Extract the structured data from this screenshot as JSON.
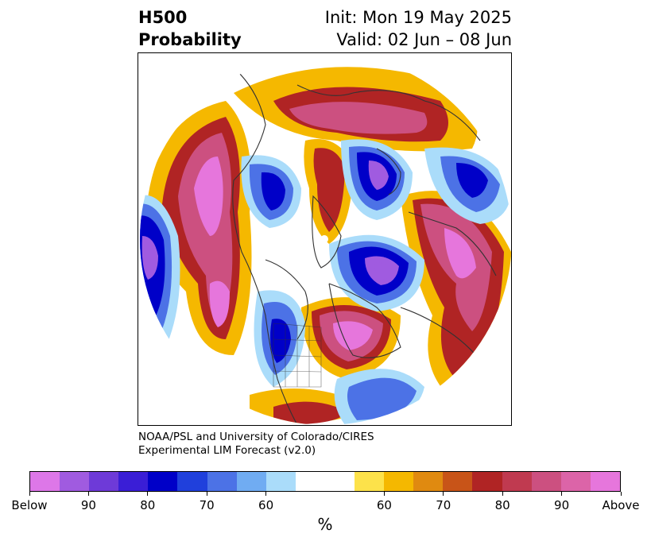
{
  "title": {
    "left_line1": "H500",
    "left_line2": "Probability",
    "right_line1": "Init: Mon 19 May 2025",
    "right_line2": "Valid: 02 Jun – 08 Jun"
  },
  "credit": {
    "line1": "NOAA/PSL and University of Colorado/CIRES",
    "line2": "Experimental LIM Forecast (v2.0)"
  },
  "colorbar": {
    "unit": "%",
    "colors": [
      "#dd77e8",
      "#a05be0",
      "#6e3ad8",
      "#3a1ed6",
      "#0000c8",
      "#2040dc",
      "#4c72e6",
      "#70acf2",
      "#aadcfa",
      "#ffffff",
      "#ffffff",
      "#fde24a",
      "#f5b800",
      "#e08a10",
      "#c85418",
      "#b02424",
      "#c03a50",
      "#cc5080",
      "#dc64a8",
      "#e676dc"
    ],
    "tick_labels": [
      "Below",
      "90",
      "80",
      "70",
      "60",
      "60",
      "70",
      "80",
      "90",
      "Above"
    ]
  },
  "map": {
    "projection": "north-polar stereographic",
    "colors": {
      "above_high": "#e676dc",
      "above_mid": "#cc5080",
      "above_low": "#b02424",
      "above_min": "#f5b800",
      "below_high": "#a05be0",
      "below_mid": "#0000c8",
      "below_low": "#4c72e6",
      "below_min": "#aadcfa",
      "coastline": "#333333"
    }
  }
}
